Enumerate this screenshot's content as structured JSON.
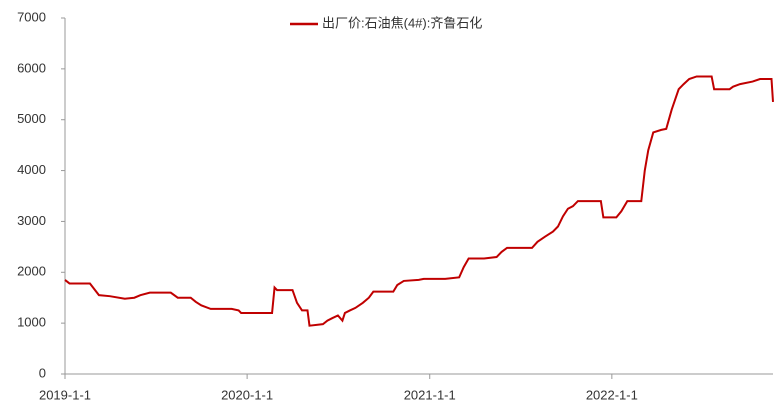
{
  "chart_data": {
    "type": "line",
    "x": [
      "2019-1-1",
      "2019-1-10",
      "2019-2-20",
      "2019-3-10",
      "2019-4-1",
      "2019-5-1",
      "2019-5-20",
      "2019-6-1",
      "2019-6-20",
      "2019-8-1",
      "2019-8-15",
      "2019-9-10",
      "2019-9-20",
      "2019-10-1",
      "2019-10-20",
      "2019-12-1",
      "2019-12-15",
      "2019-12-20",
      "2020-2-20",
      "2020-2-25",
      "2020-3-1",
      "2020-4-1",
      "2020-4-10",
      "2020-4-20",
      "2020-5-1",
      "2020-5-5",
      "2020-6-1",
      "2020-6-10",
      "2020-6-20",
      "2020-7-1",
      "2020-7-10",
      "2020-7-15",
      "2020-7-25",
      "2020-8-5",
      "2020-8-20",
      "2020-9-1",
      "2020-9-10",
      "2020-10-20",
      "2020-10-28",
      "2020-11-10",
      "2020-12-10",
      "2020-12-20",
      "2021-2-1",
      "2021-3-1",
      "2021-3-10",
      "2021-3-20",
      "2021-4-20",
      "2021-5-15",
      "2021-5-25",
      "2021-6-5",
      "2021-7-25",
      "2021-8-5",
      "2021-8-20",
      "2021-9-5",
      "2021-9-15",
      "2021-9-25",
      "2021-10-5",
      "2021-10-15",
      "2021-10-25",
      "2021-12-10",
      "2021-12-15",
      "2022-1-10",
      "2022-1-20",
      "2022-2-1",
      "2022-3-1",
      "2022-3-8",
      "2022-3-15",
      "2022-3-25",
      "2022-4-10",
      "2022-4-20",
      "2022-5-1",
      "2022-5-15",
      "2022-5-25",
      "2022-6-5",
      "2022-6-20",
      "2022-7-20",
      "2022-7-25",
      "2022-8-25",
      "2022-9-1",
      "2022-9-15",
      "2022-10-10",
      "2022-10-25",
      "2022-11-17",
      "2022-11-20"
    ],
    "series": [
      {
        "name": "出厂价:石油焦(4#):齐鲁石化",
        "color": "#c00000",
        "values": [
          1850,
          1780,
          1780,
          1550,
          1530,
          1480,
          1500,
          1550,
          1600,
          1600,
          1500,
          1500,
          1420,
          1350,
          1280,
          1280,
          1250,
          1200,
          1200,
          1700,
          1650,
          1650,
          1400,
          1250,
          1250,
          950,
          980,
          1050,
          1100,
          1150,
          1050,
          1200,
          1250,
          1300,
          1400,
          1500,
          1620,
          1620,
          1750,
          1830,
          1850,
          1870,
          1870,
          1900,
          2100,
          2270,
          2270,
          2300,
          2400,
          2480,
          2480,
          2600,
          2700,
          2800,
          2900,
          3100,
          3250,
          3300,
          3400,
          3400,
          3080,
          3080,
          3200,
          3400,
          3400,
          4000,
          4400,
          4750,
          4800,
          4820,
          5200,
          5600,
          5700,
          5800,
          5850,
          5850,
          5600,
          5600,
          5650,
          5700,
          5750,
          5800,
          5800,
          5350
        ]
      }
    ],
    "xlim": [
      "2019-1-1",
      "2022-11-20"
    ],
    "xticks": [
      "2019-1-1",
      "2020-1-1",
      "2021-1-1",
      "2022-1-1"
    ],
    "ylim": [
      0,
      7000
    ],
    "yticks": [
      0,
      1000,
      2000,
      3000,
      4000,
      5000,
      6000,
      7000
    ],
    "grid": false,
    "legend": "top"
  }
}
